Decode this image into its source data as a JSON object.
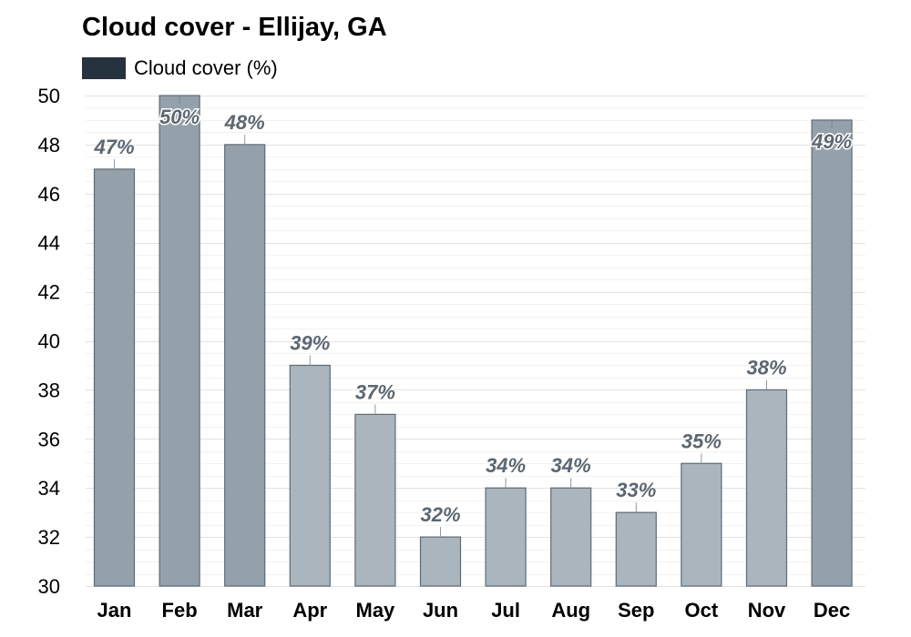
{
  "chart_data": {
    "type": "bar",
    "title": "Cloud cover - Ellijay, GA",
    "legend": {
      "label": "Cloud cover (%)",
      "color": "#26323d"
    },
    "categories": [
      "Jan",
      "Feb",
      "Mar",
      "Apr",
      "May",
      "Jun",
      "Jul",
      "Aug",
      "Sep",
      "Oct",
      "Nov",
      "Dec"
    ],
    "series": [
      {
        "name": "Cloud cover (%)",
        "values": [
          47,
          50,
          48,
          39,
          37,
          32,
          34,
          34,
          33,
          35,
          38,
          49
        ]
      }
    ],
    "data_labels": [
      "47%",
      "50%",
      "48%",
      "39%",
      "37%",
      "32%",
      "34%",
      "34%",
      "33%",
      "35%",
      "38%",
      "49%"
    ],
    "ylim": [
      30,
      50
    ],
    "yticks": [
      30,
      32,
      34,
      36,
      38,
      40,
      42,
      44,
      46,
      48,
      50
    ],
    "grid": true,
    "legend_position": "top-left",
    "colors": {
      "bar_dark": "#94a1ab",
      "bar_light": "#aab5bd",
      "bar_outline": "#5f6a73",
      "label": "#5c6771",
      "grid": "#e4e4e4"
    }
  }
}
